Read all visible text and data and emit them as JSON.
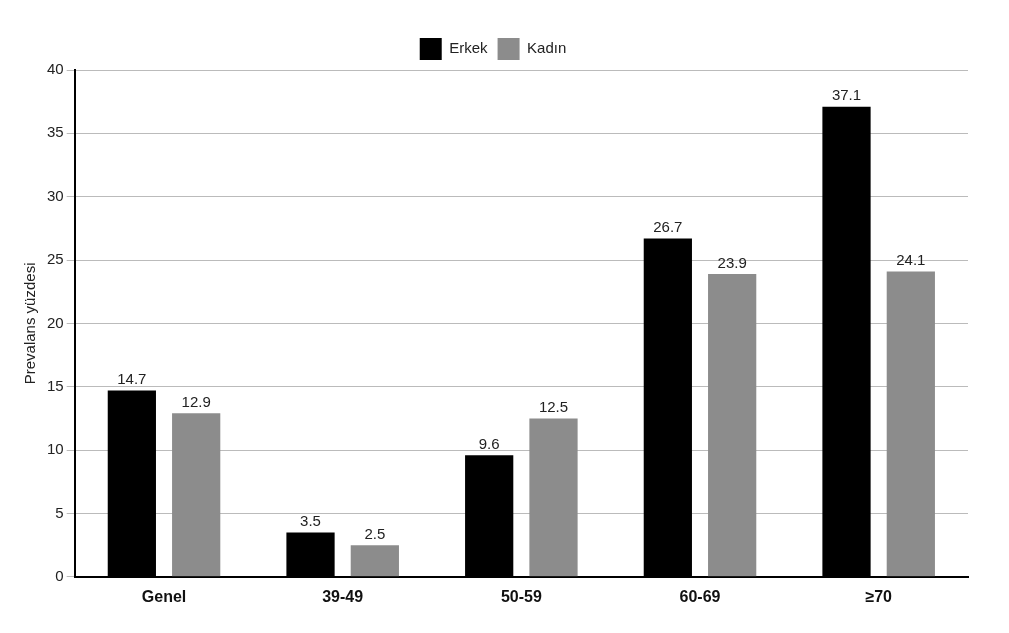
{
  "chart_data": {
    "type": "bar",
    "ylabel": "Prevalans yüzdesi",
    "categories": [
      "Genel",
      "39-49",
      "50-59",
      "60-69",
      "≥70"
    ],
    "series": [
      {
        "name": "Erkek",
        "color": "#000000",
        "values": [
          14.7,
          3.5,
          9.6,
          26.7,
          37.1
        ]
      },
      {
        "name": "Kadın",
        "color": "#8c8c8c",
        "values": [
          12.9,
          2.5,
          12.5,
          23.9,
          24.1
        ]
      }
    ],
    "ylim": [
      0,
      40
    ],
    "yticks": [
      0,
      5,
      10,
      15,
      20,
      25,
      30,
      35,
      40
    ],
    "grid": "y",
    "legend": "top",
    "data_labels": true
  }
}
